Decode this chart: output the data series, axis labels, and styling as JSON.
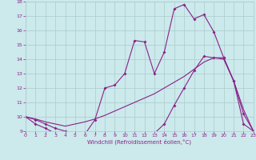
{
  "xlabel": "Windchill (Refroidissement éolien,°C)",
  "background_color": "#cce9ec",
  "line_color": "#882288",
  "ylim": [
    9,
    18
  ],
  "xlim": [
    0,
    23
  ],
  "xticks": [
    0,
    1,
    2,
    3,
    4,
    5,
    6,
    7,
    8,
    9,
    10,
    11,
    12,
    13,
    14,
    15,
    16,
    17,
    18,
    19,
    20,
    21,
    22,
    23
  ],
  "yticks": [
    9,
    10,
    11,
    12,
    13,
    14,
    15,
    16,
    17,
    18
  ],
  "line1_x": [
    0,
    1,
    2,
    3,
    4,
    5,
    6,
    7,
    8,
    9,
    10,
    11,
    12,
    13,
    14,
    15,
    16,
    17,
    18,
    19,
    20,
    21,
    22,
    23
  ],
  "line1_y": [
    10.0,
    9.8,
    9.5,
    9.2,
    9.0,
    8.85,
    8.8,
    9.8,
    12.0,
    12.2,
    13.0,
    15.3,
    15.2,
    13.0,
    14.5,
    17.5,
    17.8,
    16.8,
    17.1,
    15.9,
    14.1,
    12.5,
    10.2,
    9.0
  ],
  "line2_x": [
    0,
    1,
    2,
    3,
    4,
    5,
    6,
    7,
    8,
    9,
    10,
    11,
    12,
    13,
    14,
    15,
    16,
    17,
    18,
    19,
    20,
    21,
    22,
    23
  ],
  "line2_y": [
    10.0,
    9.5,
    9.2,
    8.85,
    8.85,
    8.85,
    8.85,
    8.85,
    8.85,
    8.85,
    8.85,
    8.85,
    8.85,
    8.85,
    9.5,
    10.8,
    12.0,
    13.2,
    14.2,
    14.1,
    14.1,
    12.5,
    9.5,
    9.0
  ],
  "line3_x": [
    0,
    1,
    2,
    3,
    4,
    5,
    6,
    7,
    8,
    9,
    10,
    11,
    12,
    13,
    14,
    15,
    16,
    17,
    18,
    19,
    20,
    21,
    22,
    23
  ],
  "line3_y": [
    10.0,
    9.85,
    9.65,
    9.5,
    9.35,
    9.5,
    9.65,
    9.85,
    10.1,
    10.4,
    10.7,
    11.0,
    11.3,
    11.6,
    12.0,
    12.4,
    12.8,
    13.3,
    13.8,
    14.1,
    14.0,
    12.5,
    10.5,
    9.0
  ],
  "grid_color": "#aacccc"
}
